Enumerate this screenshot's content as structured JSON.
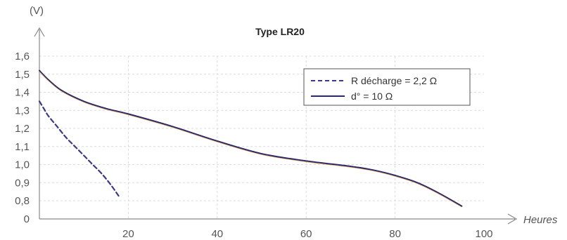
{
  "chart_data": {
    "type": "line",
    "title": "Type LR20",
    "ylabel": "(V)",
    "xlabel": "Heures",
    "xlim": [
      0,
      100
    ],
    "ylim": [
      0,
      1.6
    ],
    "x_ticks": [
      "20",
      "40",
      "60",
      "80",
      "100"
    ],
    "y_ticks": [
      "0",
      "0,8",
      "0,9",
      "1,0",
      "1,1",
      "1,2",
      "1,3",
      "1,4",
      "1,5",
      "1,6"
    ],
    "legend_position": "top-right",
    "grid": true,
    "series": [
      {
        "name": "R décharge = 2,2 Ω",
        "style": "dashed",
        "color": "#3a3a8a",
        "x": [
          0,
          1,
          2,
          4,
          6,
          8,
          10,
          12,
          14,
          16,
          18
        ],
        "y": [
          1.35,
          1.31,
          1.27,
          1.21,
          1.15,
          1.1,
          1.05,
          1.0,
          0.95,
          0.89,
          0.82
        ]
      },
      {
        "name": "d° = 10 Ω",
        "style": "solid",
        "color": "#2a2a6a",
        "x": [
          0,
          2,
          5,
          10,
          15,
          20,
          30,
          40,
          50,
          60,
          70,
          75,
          80,
          85,
          90,
          95
        ],
        "y": [
          1.52,
          1.47,
          1.41,
          1.35,
          1.31,
          1.28,
          1.21,
          1.13,
          1.06,
          1.02,
          0.99,
          0.97,
          0.94,
          0.9,
          0.84,
          0.77
        ]
      }
    ]
  }
}
